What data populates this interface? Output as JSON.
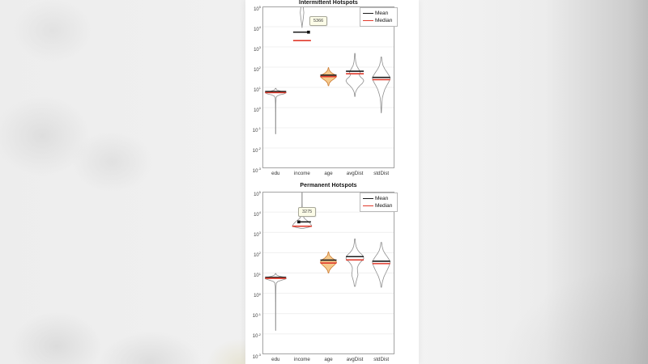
{
  "legend": {
    "mean_label": "Mean",
    "median_label": "Median",
    "mean_color": "#1c1c1c",
    "median_color": "#e03a2c"
  },
  "y_axis": {
    "tick_base": "10",
    "tick_exponents": [
      5,
      4,
      3,
      2,
      1,
      0,
      -1,
      -2,
      -3
    ]
  },
  "categories": [
    "edu",
    "income",
    "age",
    "avgDist",
    "stdDist"
  ],
  "colors": {
    "violin_outline": "#8f8f8f",
    "age_fill": "#f5c98c",
    "age_stroke": "#cd7c32",
    "gridline": "#ebebeb",
    "axis_border": "#a3a3a3"
  },
  "chart_data": [
    {
      "type": "violin",
      "title": "Intermittent Hotspots",
      "yscale": "log",
      "ylim": [
        0.001,
        100000
      ],
      "grid": "horizontal",
      "legend_position": "northeast-inside",
      "categories": [
        "edu",
        "income",
        "age",
        "avgDist",
        "stdDist"
      ],
      "datatip": {
        "series": "income",
        "value": 5366,
        "on": "mean"
      },
      "series": [
        {
          "name": "edu",
          "mean": 6.2,
          "median": 5.5,
          "hw": 13,
          "fill": null,
          "shape": [
            [
              9,
              0.02
            ],
            [
              7.5,
              0.1
            ],
            [
              6.5,
              0.45
            ],
            [
              5.5,
              1.0
            ],
            [
              4.8,
              0.8
            ],
            [
              4.2,
              0.35
            ],
            [
              3.6,
              0.1
            ],
            [
              3.0,
              0.04
            ],
            [
              1.5,
              0.02
            ],
            [
              0.5,
              0.015
            ],
            [
              0.05,
              0.012
            ]
          ]
        },
        {
          "name": "income",
          "mean": 5366,
          "median": 2050,
          "hw": 11,
          "fill": null,
          "mean_line": {
            "from": -11,
            "to": 8,
            "marker": "end"
          },
          "shape": [
            [
              130000,
              0.1
            ],
            [
              50000,
              0.2
            ],
            [
              25000,
              0.13
            ],
            [
              15000,
              0.06
            ],
            [
              11000,
              0.02
            ],
            [
              9000,
              0.006
            ]
          ]
        },
        {
          "name": "age",
          "mean": 40,
          "median": 34,
          "hw": 10,
          "fill": "age",
          "shape": [
            [
              95,
              0.02
            ],
            [
              70,
              0.1
            ],
            [
              52,
              0.4
            ],
            [
              40,
              0.9
            ],
            [
              34,
              1.0
            ],
            [
              27,
              0.75
            ],
            [
              21,
              0.35
            ],
            [
              16,
              0.1
            ],
            [
              12,
              0.03
            ]
          ]
        },
        {
          "name": "avgDist",
          "mean": 63,
          "median": 47,
          "hw": 11,
          "fill": null,
          "shape": [
            [
              480,
              0.025
            ],
            [
              300,
              0.05
            ],
            [
              180,
              0.1
            ],
            [
              120,
              0.2
            ],
            [
              90,
              0.35
            ],
            [
              70,
              0.5
            ],
            [
              58,
              0.6
            ],
            [
              48,
              0.55
            ],
            [
              40,
              0.5
            ],
            [
              32,
              0.65
            ],
            [
              26,
              0.9
            ],
            [
              21,
              1.0
            ],
            [
              16,
              0.85
            ],
            [
              12,
              0.55
            ],
            [
              9,
              0.3
            ],
            [
              6.5,
              0.12
            ],
            [
              5,
              0.05
            ],
            [
              3.5,
              0.02
            ]
          ]
        },
        {
          "name": "stdDist",
          "mean": 31,
          "median": 24,
          "hw": 11,
          "fill": null,
          "shape": [
            [
              320,
              0.03
            ],
            [
              200,
              0.08
            ],
            [
              120,
              0.2
            ],
            [
              80,
              0.4
            ],
            [
              55,
              0.65
            ],
            [
              40,
              0.85
            ],
            [
              30,
              1.0
            ],
            [
              23,
              0.95
            ],
            [
              17,
              0.8
            ],
            [
              12,
              0.6
            ],
            [
              8,
              0.4
            ],
            [
              5,
              0.25
            ],
            [
              3,
              0.12
            ],
            [
              1.5,
              0.06
            ],
            [
              0.8,
              0.03
            ],
            [
              0.55,
              0.015
            ]
          ]
        }
      ]
    },
    {
      "type": "violin",
      "title": "Permanent Hotspots",
      "yscale": "log",
      "ylim": [
        0.001,
        100000
      ],
      "grid": "horizontal",
      "legend_position": "northeast-inside",
      "categories": [
        "edu",
        "income",
        "age",
        "avgDist",
        "stdDist"
      ],
      "datatip": {
        "series": "income",
        "value": 3275,
        "on": "mean"
      },
      "series": [
        {
          "name": "edu",
          "mean": 6.1,
          "median": 5.5,
          "hw": 13,
          "fill": null,
          "shape": [
            [
              9.5,
              0.02
            ],
            [
              8,
              0.08
            ],
            [
              7,
              0.35
            ],
            [
              6,
              0.9
            ],
            [
              5.2,
              1.0
            ],
            [
              4.5,
              0.6
            ],
            [
              3.8,
              0.2
            ],
            [
              3.2,
              0.07
            ],
            [
              2.2,
              0.03
            ],
            [
              1.0,
              0.02
            ],
            [
              0.3,
              0.015
            ],
            [
              0.06,
              0.012
            ],
            [
              0.015,
              0.01
            ]
          ]
        },
        {
          "name": "income",
          "mean": 3275,
          "median": 2000,
          "hw": 12,
          "fill": null,
          "mean_line": {
            "from": -4,
            "to": 11,
            "marker": "start"
          },
          "shape": [
            [
              130000,
              0.015
            ],
            [
              30000,
              0.015
            ],
            [
              12000,
              0.03
            ],
            [
              7000,
              0.08
            ],
            [
              5000,
              0.22
            ],
            [
              4000,
              0.45
            ],
            [
              3200,
              0.7
            ],
            [
              2500,
              0.9
            ],
            [
              2000,
              1.0
            ],
            [
              1750,
              0.6
            ],
            [
              1550,
              0.1
            ]
          ]
        },
        {
          "name": "age",
          "mean": 43,
          "median": 31,
          "hw": 10,
          "fill": "age",
          "shape": [
            [
              110,
              0.02
            ],
            [
              75,
              0.12
            ],
            [
              55,
              0.45
            ],
            [
              42,
              0.9
            ],
            [
              33,
              1.0
            ],
            [
              25,
              0.75
            ],
            [
              18,
              0.35
            ],
            [
              13,
              0.1
            ],
            [
              10,
              0.03
            ]
          ]
        },
        {
          "name": "avgDist",
          "mean": 64,
          "median": 44,
          "hw": 11,
          "fill": null,
          "shape": [
            [
              480,
              0.03
            ],
            [
              300,
              0.07
            ],
            [
              200,
              0.14
            ],
            [
              140,
              0.3
            ],
            [
              100,
              0.55
            ],
            [
              80,
              0.8
            ],
            [
              65,
              0.95
            ],
            [
              52,
              1.0
            ],
            [
              42,
              0.85
            ],
            [
              33,
              0.6
            ],
            [
              25,
              0.4
            ],
            [
              18,
              0.28
            ],
            [
              12,
              0.3
            ],
            [
              8,
              0.35
            ],
            [
              5.5,
              0.25
            ],
            [
              3.5,
              0.12
            ],
            [
              2.2,
              0.05
            ]
          ]
        },
        {
          "name": "stdDist",
          "mean": 38,
          "median": 29,
          "hw": 11,
          "fill": null,
          "shape": [
            [
              320,
              0.04
            ],
            [
              200,
              0.1
            ],
            [
              130,
              0.22
            ],
            [
              90,
              0.42
            ],
            [
              65,
              0.65
            ],
            [
              48,
              0.85
            ],
            [
              36,
              1.0
            ],
            [
              28,
              0.95
            ],
            [
              21,
              0.85
            ],
            [
              15,
              0.7
            ],
            [
              10,
              0.5
            ],
            [
              6.5,
              0.3
            ],
            [
              4,
              0.15
            ],
            [
              2.8,
              0.07
            ],
            [
              2,
              0.03
            ]
          ]
        }
      ]
    }
  ]
}
